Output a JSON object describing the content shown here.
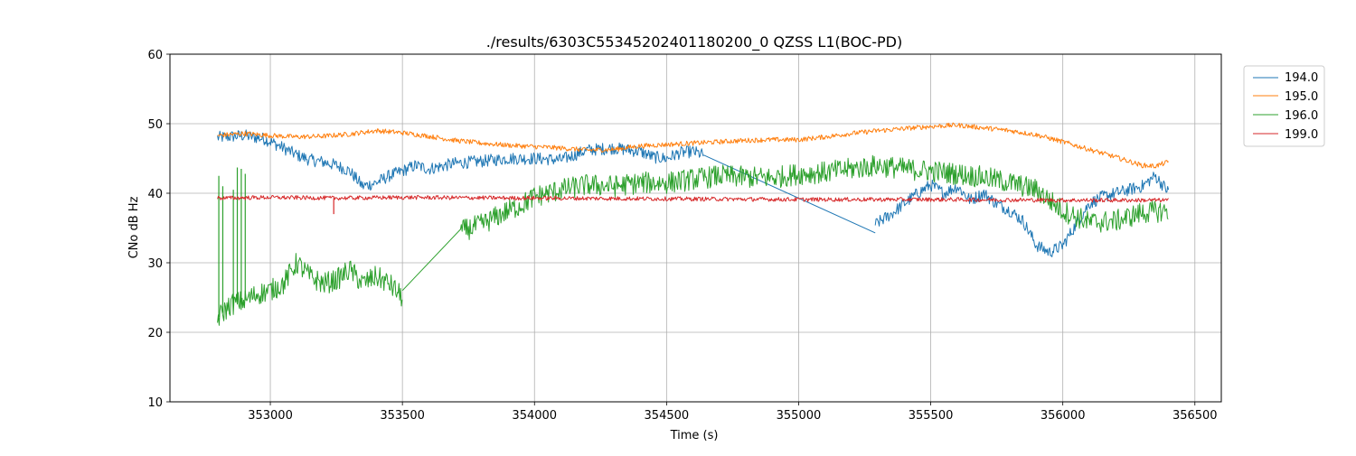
{
  "chart_data": {
    "type": "line",
    "title": "./results/6303C55345202401180200_0 QZSS L1(BOC-PD)",
    "xlabel": "Time (s)",
    "ylabel": "CNo dB Hz",
    "xlim": [
      352620,
      356600
    ],
    "ylim": [
      10,
      60
    ],
    "xticks": [
      353000,
      353500,
      354000,
      354500,
      355000,
      355500,
      356000,
      356500
    ],
    "yticks": [
      10,
      20,
      30,
      40,
      50,
      60
    ],
    "grid": true,
    "legend_position": "upper right, outside plot",
    "series": [
      {
        "name": "194.0",
        "color": "#1f77b4",
        "noise": 0.9,
        "segments": [
          {
            "x": [
              352800,
              352900,
              352980,
              353050,
              353100,
              353150,
              353200,
              353250,
              353300,
              353350,
              353400,
              353450,
              353500,
              353550,
              353600,
              353700,
              353800,
              353900,
              354000,
              354100,
              354200,
              354300,
              354400,
              354450,
              354500,
              354550,
              354600,
              354640
            ],
            "y": [
              48,
              48.3,
              47.8,
              46.5,
              45.5,
              44.8,
              44.5,
              44.0,
              43.2,
              41.0,
              41.5,
              42.5,
              43.2,
              44.0,
              43.5,
              44.3,
              44.6,
              45.0,
              45.0,
              44.8,
              46.2,
              46.5,
              46.0,
              45.2,
              45.0,
              45.8,
              46.0,
              45.5
            ]
          },
          {
            "x": [
              354640,
              355290
            ],
            "y": [
              45.5,
              34.3
            ]
          },
          {
            "x": [
              355290,
              355350,
              355400,
              355450,
              355500,
              355550,
              355600,
              355650,
              355700,
              355750,
              355800,
              355850,
              355900,
              355950,
              356000,
              356050,
              356100,
              356150,
              356200,
              356250,
              356300,
              356350,
              356400
            ],
            "y": [
              35.5,
              37.0,
              38.5,
              40.0,
              41.2,
              40.0,
              41.0,
              39.0,
              40.0,
              38.5,
              37.5,
              36.0,
              32.5,
              31.5,
              32.5,
              35.5,
              38.5,
              39.5,
              40.0,
              40.5,
              41.0,
              42.5,
              40.2
            ]
          }
        ]
      },
      {
        "name": "195.0",
        "color": "#ff7f0e",
        "noise": 0.35,
        "segments": [
          {
            "x": [
              352800,
              352900,
              353000,
              353100,
              353200,
              353300,
              353400,
              353500,
              353600,
              353700,
              353800,
              353900,
              354000,
              354100,
              354200,
              354300,
              354400,
              354500,
              354600,
              354700,
              354800,
              354900,
              355000,
              355100,
              355200,
              355300,
              355400,
              355500,
              355600,
              355700,
              355800,
              355900,
              356000,
              356100,
              356200,
              356300,
              356350,
              356400
            ],
            "y": [
              48.3,
              48.6,
              48.3,
              48.1,
              48.2,
              48.5,
              49.0,
              48.7,
              48.2,
              47.6,
              47.2,
              46.9,
              46.7,
              46.5,
              46.2,
              46.3,
              46.8,
              47.0,
              47.2,
              47.4,
              47.6,
              47.7,
              47.7,
              48.1,
              48.6,
              49.0,
              49.3,
              49.6,
              49.8,
              49.4,
              49.0,
              48.4,
              47.4,
              46.3,
              45.2,
              44.0,
              43.9,
              44.5
            ]
          }
        ]
      },
      {
        "name": "196.0",
        "color": "#2ca02c",
        "noise": 1.6,
        "segments": [
          {
            "x": [
              352800,
              352850,
              352900,
              352950,
              353000,
              353050,
              353100,
              353150,
              353200,
              353250,
              353300,
              353350,
              353400,
              353450,
              353500
            ],
            "y": [
              22,
              24,
              24.5,
              25.5,
              26,
              27,
              30,
              28,
              27,
              27.5,
              29,
              27,
              28,
              27,
              25
            ]
          },
          {
            "x": [
              353500,
              353720
            ],
            "y": [
              26,
              34.8
            ]
          },
          {
            "x": [
              353720,
              353800,
              353850,
              353900,
              353950,
              354000,
              354100,
              354200,
              354300,
              354400,
              354500,
              354600,
              354700,
              354800,
              354900,
              355000,
              355100,
              355200,
              355300,
              355400,
              355500,
              355600,
              355700,
              355800,
              355900,
              356000,
              356100,
              356200,
              356300,
              356400
            ],
            "y": [
              34.5,
              35.5,
              36.5,
              37.5,
              38.3,
              39.5,
              40.5,
              41.2,
              41.0,
              41.5,
              41.5,
              42.0,
              42.5,
              42.3,
              42.2,
              42.8,
              43.0,
              43.5,
              44.0,
              43.5,
              43.2,
              42.8,
              42.3,
              41.5,
              40.5,
              37.5,
              35.8,
              36.0,
              37.2,
              37.5
            ]
          }
        ],
        "spikes": [
          {
            "x": 352805,
            "y": 42.5
          },
          {
            "x": 352820,
            "y": 41
          },
          {
            "x": 352860,
            "y": 40.5
          },
          {
            "x": 352875,
            "y": 43.7
          },
          {
            "x": 352890,
            "y": 43.5
          },
          {
            "x": 352905,
            "y": 42.8
          }
        ]
      },
      {
        "name": "199.0",
        "color": "#d62728",
        "noise": 0.3,
        "segments": [
          {
            "x": [
              352800,
              353000,
              353250,
              353500,
              354000,
              354500,
              355000,
              355500,
              356000,
              356400
            ],
            "y": [
              39.3,
              39.4,
              39.3,
              39.4,
              39.3,
              39.2,
              39.1,
              39.1,
              39.0,
              39.0
            ]
          }
        ],
        "spikes": [
          {
            "x": 353240,
            "y": 37.0
          }
        ]
      }
    ]
  }
}
